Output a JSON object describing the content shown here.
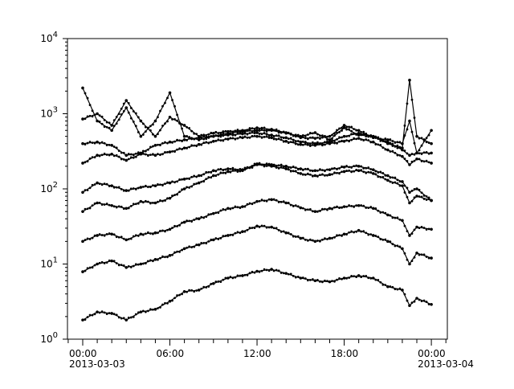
{
  "chart_data": {
    "type": "line",
    "title": "",
    "xlabel": "",
    "ylabel": "",
    "y_scale": "log",
    "ylim": [
      1,
      10000
    ],
    "xlim": [
      "2013-03-02T22:57",
      "2013-03-04T01:06"
    ],
    "grid": false,
    "legend": "none",
    "marker": "dot",
    "line_color": "#000000",
    "y_ticks": [
      {
        "value": 1,
        "base": "10",
        "exp": "0"
      },
      {
        "value": 10,
        "base": "10",
        "exp": "1"
      },
      {
        "value": 100,
        "base": "10",
        "exp": "2"
      },
      {
        "value": 1000,
        "base": "10",
        "exp": "3"
      },
      {
        "value": 10000,
        "base": "10",
        "exp": "4"
      }
    ],
    "x_ticks": [
      {
        "value": "2013-03-03T00:00",
        "time": "00:00",
        "date": "2013-03-03"
      },
      {
        "value": "2013-03-03T06:00",
        "time": "06:00",
        "date": ""
      },
      {
        "value": "2013-03-03T12:00",
        "time": "12:00",
        "date": ""
      },
      {
        "value": "2013-03-03T18:00",
        "time": "18:00",
        "date": ""
      },
      {
        "value": "2013-03-04T00:00",
        "time": "00:00",
        "date": "2013-03-04"
      }
    ],
    "x": [
      "2013-03-03T00:00",
      "2013-03-03T01:00",
      "2013-03-03T02:00",
      "2013-03-03T03:00",
      "2013-03-03T04:00",
      "2013-03-03T05:00",
      "2013-03-03T06:00",
      "2013-03-03T07:00",
      "2013-03-03T08:00",
      "2013-03-03T09:00",
      "2013-03-03T10:00",
      "2013-03-03T11:00",
      "2013-03-03T12:00",
      "2013-03-03T13:00",
      "2013-03-03T14:00",
      "2013-03-03T15:00",
      "2013-03-03T16:00",
      "2013-03-03T17:00",
      "2013-03-03T18:00",
      "2013-03-03T19:00",
      "2013-03-03T20:00",
      "2013-03-03T21:00",
      "2013-03-03T22:00",
      "2013-03-03T22:30",
      "2013-03-03T23:00",
      "2013-03-04T00:00"
    ],
    "series": [
      {
        "values": [
          1.8,
          2.3,
          2.2,
          1.8,
          2.3,
          2.5,
          3.2,
          4.3,
          4.5,
          5.5,
          6.5,
          7,
          8,
          8.5,
          7.5,
          6.5,
          6,
          5.8,
          6.5,
          7,
          6.5,
          5,
          4.5,
          2.8,
          3.5,
          2.9
        ]
      },
      {
        "values": [
          7.9,
          10,
          11,
          9,
          10,
          11.5,
          13,
          16,
          18,
          21,
          24,
          27,
          32,
          31,
          26,
          22,
          20,
          22,
          25,
          28,
          24,
          20,
          16,
          10,
          14,
          12
        ]
      },
      {
        "values": [
          20,
          24,
          25,
          21,
          25,
          26,
          29,
          36,
          40,
          47,
          55,
          58,
          68,
          72,
          65,
          56,
          50,
          55,
          58,
          60,
          55,
          45,
          38,
          24,
          31,
          29
        ]
      },
      {
        "values": [
          50,
          65,
          60,
          55,
          68,
          65,
          75,
          100,
          120,
          150,
          170,
          175,
          210,
          200,
          185,
          160,
          150,
          155,
          170,
          175,
          160,
          130,
          110,
          65,
          80,
          70
        ]
      },
      {
        "values": [
          90,
          120,
          110,
          95,
          105,
          110,
          120,
          135,
          150,
          175,
          185,
          180,
          215,
          210,
          200,
          185,
          175,
          180,
          195,
          200,
          180,
          150,
          125,
          90,
          100,
          70
        ]
      },
      {
        "values": [
          220,
          280,
          290,
          240,
          290,
          280,
          310,
          350,
          390,
          430,
          460,
          480,
          500,
          480,
          430,
          390,
          380,
          400,
          430,
          470,
          420,
          330,
          270,
          210,
          250,
          220
        ]
      },
      {
        "values": [
          400,
          420,
          380,
          280,
          300,
          380,
          420,
          450,
          480,
          500,
          520,
          540,
          560,
          520,
          480,
          420,
          400,
          420,
          500,
          550,
          500,
          420,
          330,
          280,
          300,
          300
        ]
      },
      {
        "values": [
          850,
          1000,
          700,
          1500,
          800,
          500,
          900,
          700,
          500,
          550,
          580,
          600,
          650,
          620,
          560,
          480,
          470,
          500,
          700,
          600,
          480,
          450,
          400,
          800,
          300,
          600
        ]
      },
      {
        "values": [
          2200,
          800,
          600,
          1200,
          500,
          800,
          1900,
          500,
          450,
          500,
          550,
          580,
          600,
          600,
          550,
          500,
          560,
          450,
          650,
          520,
          500,
          400,
          350,
          2800,
          500,
          400
        ]
      }
    ]
  }
}
